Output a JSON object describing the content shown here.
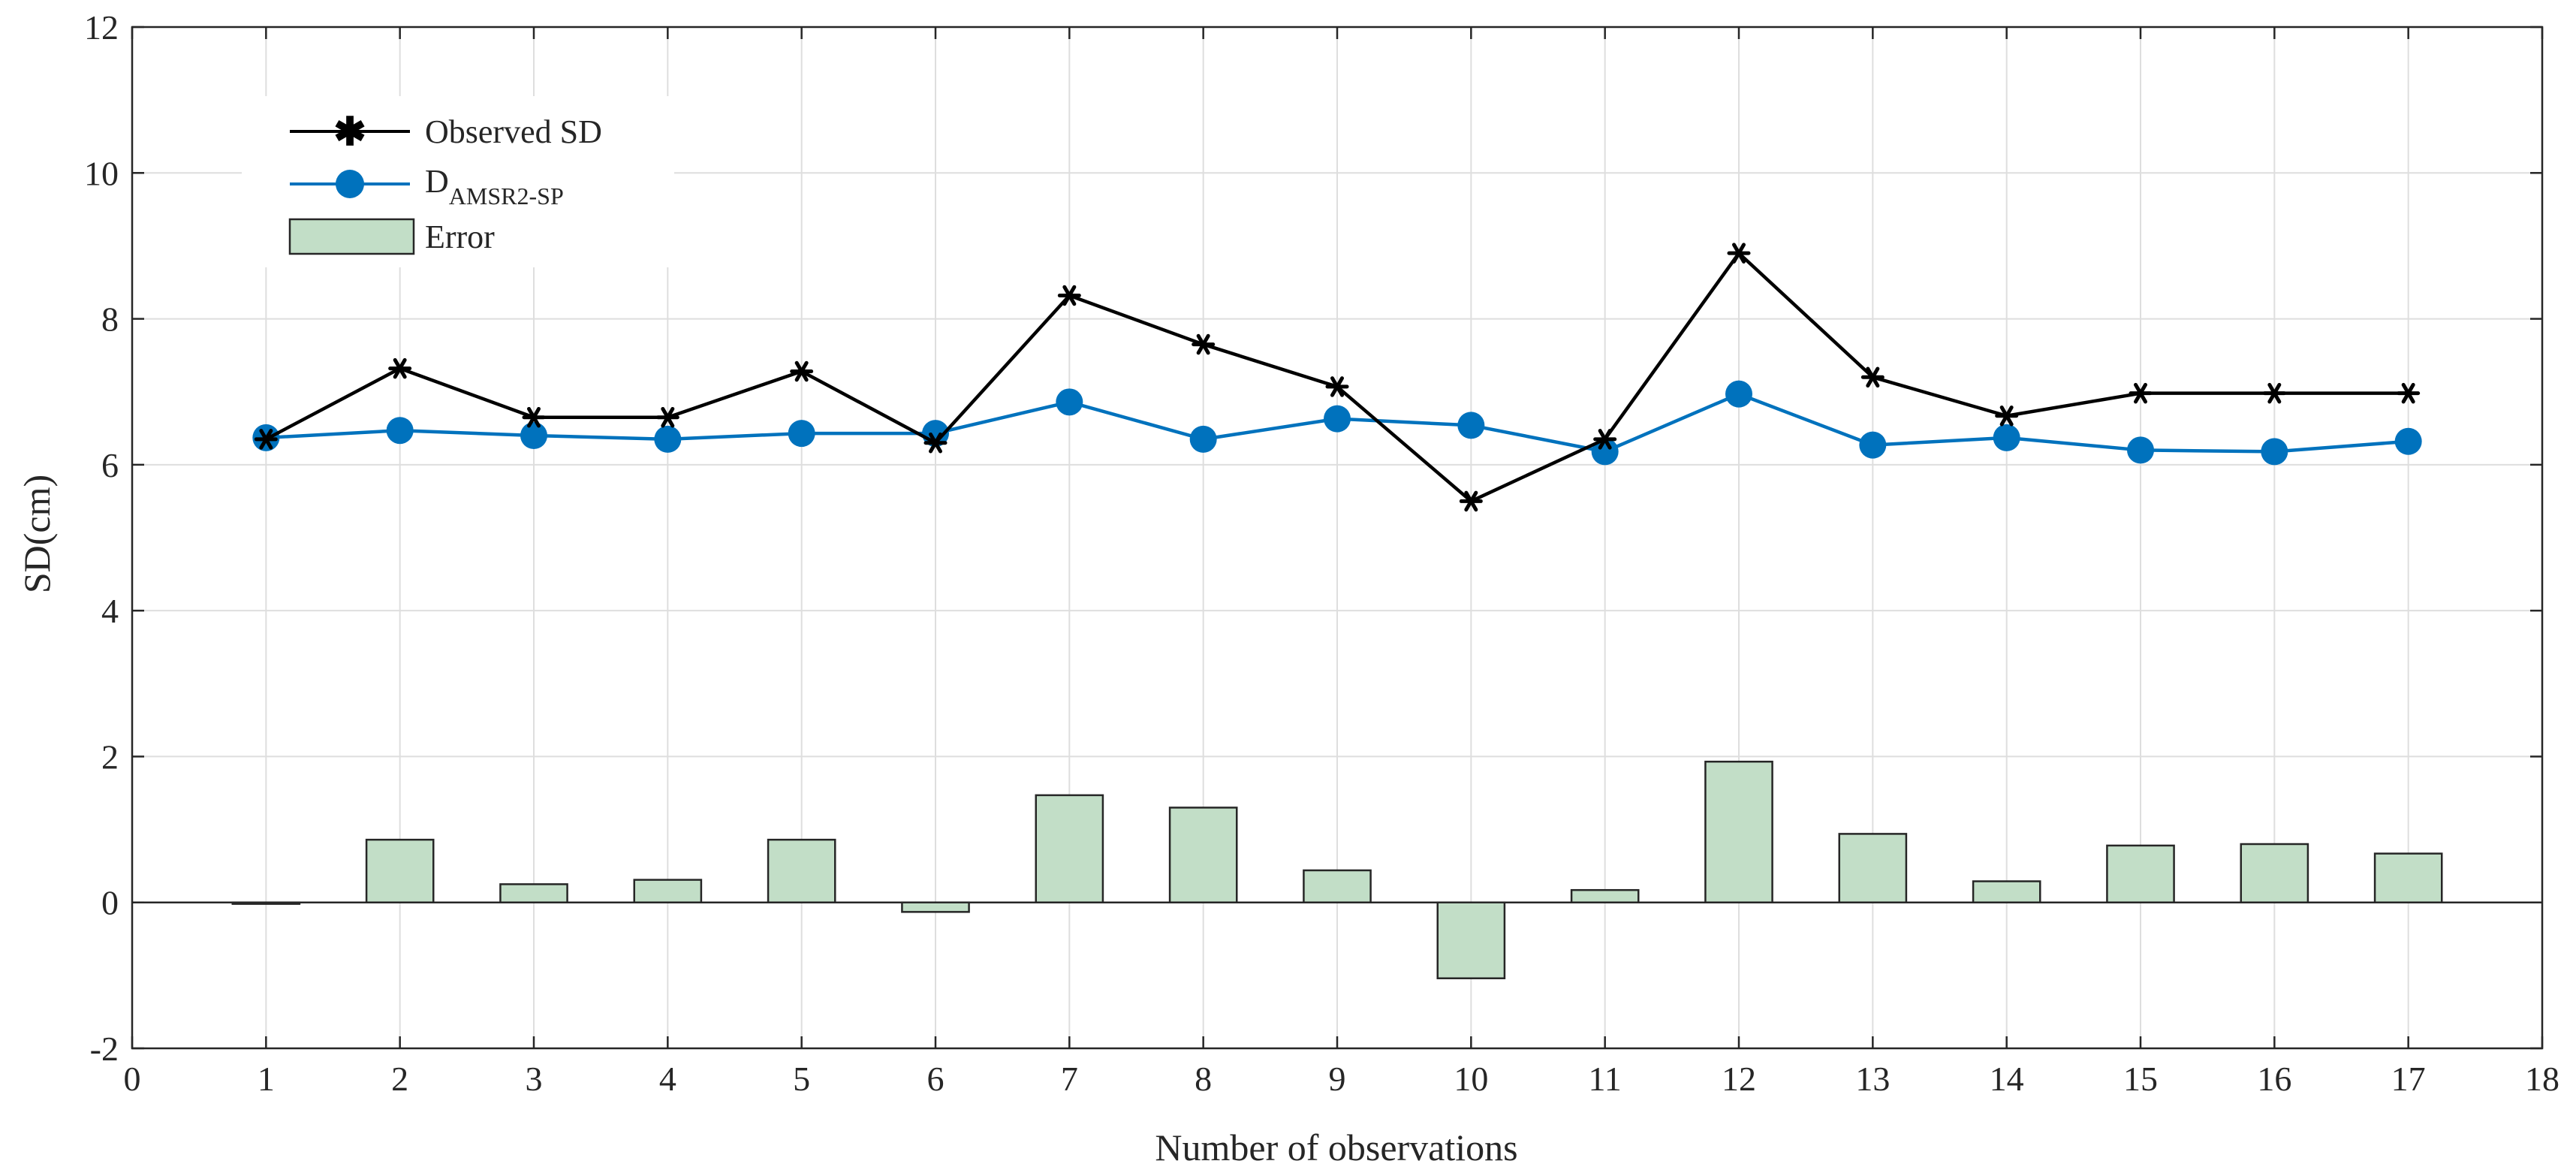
{
  "chart_data": {
    "type": "line+bar",
    "xlabel": "Number of observations",
    "ylabel": "SD(cm)",
    "xlim": [
      0,
      18
    ],
    "ylim": [
      -2,
      12
    ],
    "xticks": [
      0,
      1,
      2,
      3,
      4,
      5,
      6,
      7,
      8,
      9,
      10,
      11,
      12,
      13,
      14,
      15,
      16,
      17,
      18
    ],
    "yticks": [
      -2,
      0,
      2,
      4,
      6,
      8,
      10,
      12
    ],
    "grid": true,
    "legend_position": "top-left",
    "x": [
      1,
      2,
      3,
      4,
      5,
      6,
      7,
      8,
      9,
      10,
      11,
      12,
      13,
      14,
      15,
      16,
      17
    ],
    "series": [
      {
        "name": "Observed SD",
        "type": "line",
        "marker": "asterisk",
        "color": "#000000",
        "values": [
          6.35,
          7.32,
          6.65,
          6.65,
          7.28,
          6.3,
          8.32,
          7.65,
          7.07,
          5.5,
          6.35,
          8.9,
          7.2,
          6.67,
          6.98,
          6.98,
          6.98
        ]
      },
      {
        "name": "D",
        "name_subscript": "AMSR2-SP",
        "type": "line",
        "marker": "circle",
        "color": "#0072BD",
        "values": [
          6.37,
          6.47,
          6.4,
          6.35,
          6.43,
          6.43,
          6.86,
          6.35,
          6.63,
          6.54,
          6.18,
          6.97,
          6.27,
          6.37,
          6.2,
          6.18,
          6.32
        ]
      },
      {
        "name": "Error",
        "type": "bar",
        "color": "#C2DEC7",
        "values": [
          -0.02,
          0.86,
          0.25,
          0.31,
          0.86,
          -0.13,
          1.47,
          1.3,
          0.44,
          -1.04,
          0.17,
          1.93,
          0.94,
          0.29,
          0.78,
          0.8,
          0.67
        ]
      }
    ]
  }
}
